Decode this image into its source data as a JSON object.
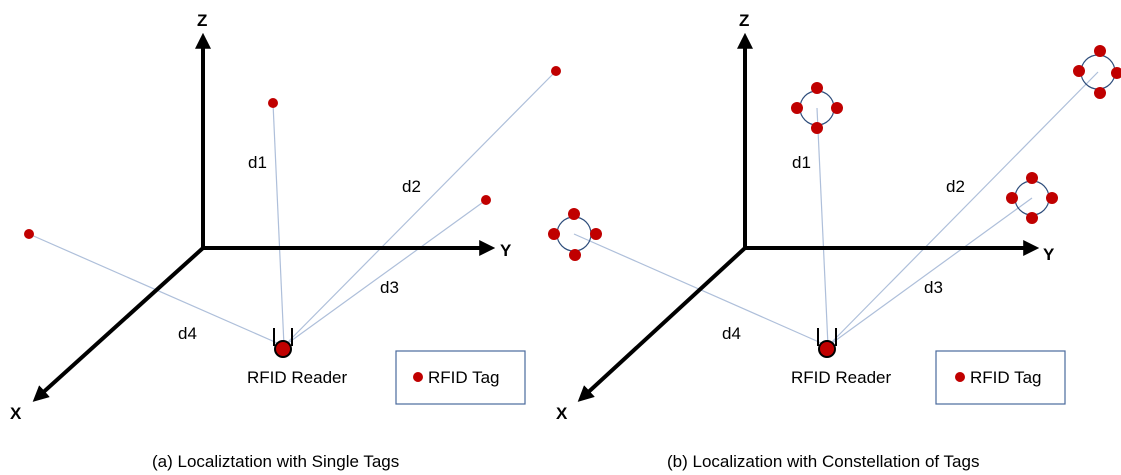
{
  "colors": {
    "tag": "#c00000",
    "line": "#aebfda",
    "legend_border": "#4a6a9c",
    "axis": "#000000",
    "constellation_ring": "#2e4d7b"
  },
  "panels": [
    {
      "caption": "(a) Localiztation with Single Tags",
      "axes": {
        "x": "X",
        "y": "Y",
        "z": "Z"
      },
      "reader_label": "RFID Reader",
      "legend_label": "RFID Tag",
      "distances": [
        "d1",
        "d2",
        "d3",
        "d4"
      ]
    },
    {
      "caption": "(b) Localization with Constellation of Tags",
      "axes": {
        "x": "X",
        "y": "Y",
        "z": "Z"
      },
      "reader_label": "RFID Reader",
      "legend_label": "RFID Tag",
      "distances": [
        "d1",
        "d2",
        "d3",
        "d4"
      ]
    }
  ]
}
